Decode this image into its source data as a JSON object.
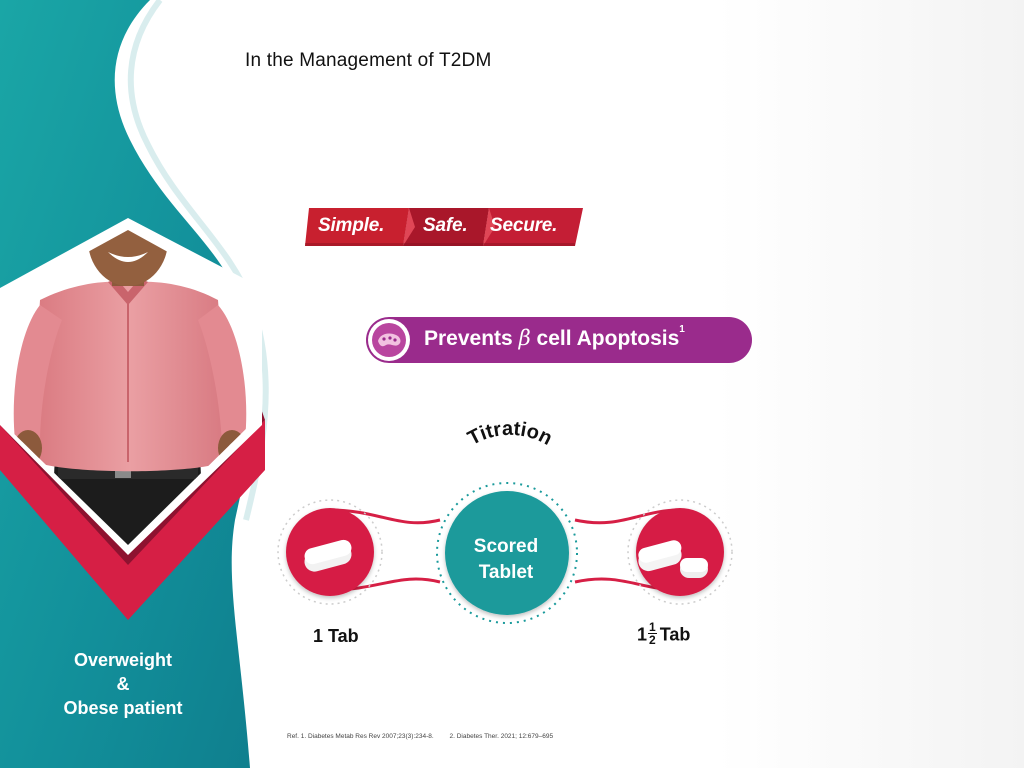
{
  "heading": "In the Management of T2DM",
  "tagline": {
    "simple": "Simple.",
    "safe": "Safe.",
    "secure": "Secure."
  },
  "badge": {
    "prefix": "Prevents ",
    "beta": "β",
    "suffix": " cell Apoptosis",
    "ref_mark": "1",
    "icon": "pancreas-icon"
  },
  "titration": {
    "title": "Titration",
    "center_label_line1": "Scored",
    "center_label_line2": "Tablet",
    "left_label": "1 Tab",
    "right_label_whole": "1",
    "right_label_num": "1",
    "right_label_den": "2",
    "right_label_unit": "Tab"
  },
  "patient": {
    "line1": "Overweight",
    "line2": "&",
    "line3": "Obese patient"
  },
  "references": {
    "ref1": "Ref. 1. Diabetes Metab Res Rev 2007;23(3):234-8.",
    "ref2": "2. Diabetes Ther. 2021; 12:679–695"
  },
  "colors": {
    "teal": "#149aa0",
    "crimson": "#d61f45",
    "purple": "#9a2b8c",
    "red_banner": "#c8202f"
  }
}
